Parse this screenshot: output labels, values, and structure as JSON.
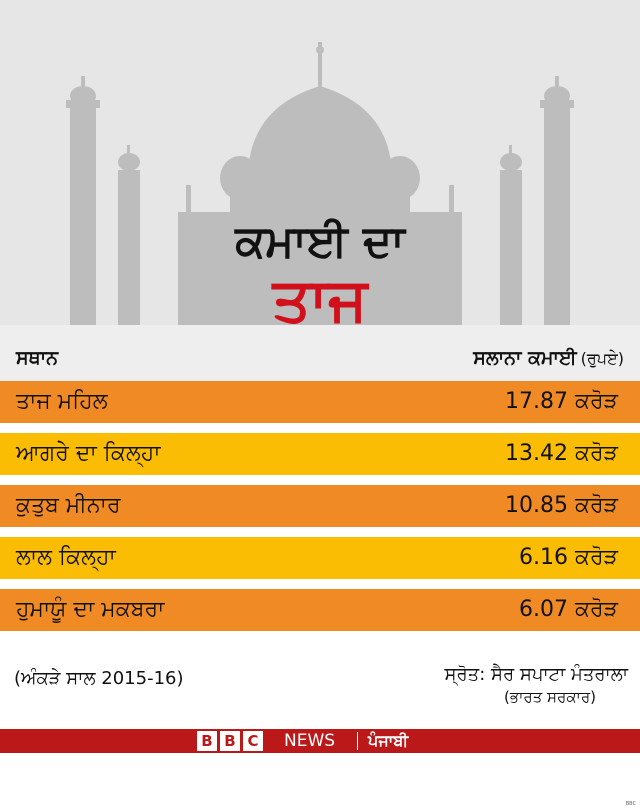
{
  "title": {
    "line1": "ਕਮਾਈ ਦਾ",
    "line2": "ਤਾਜ"
  },
  "header": {
    "place": "ਸਥਾਨ",
    "earnings": "ਸਲਾਨਾ ਕਮਾਈ",
    "unit": "(ਰੁਪਏ)"
  },
  "chart_data": {
    "type": "table",
    "title": "ਕਮਾਈ ਦਾ ਤਾਜ",
    "columns": [
      "ਸਥਾਨ",
      "ਸਲਾਨਾ ਕਮਾਈ (ਰੁਪਏ)"
    ],
    "rows": [
      {
        "place": "ਤਾਜ ਮਹਿਲ",
        "value": 17.87,
        "value_label": "17.87 ਕਰੋੜ"
      },
      {
        "place": "ਆਗਰੇ ਦਾ ਕਿਲ੍ਹਾ",
        "value": 13.42,
        "value_label": "13.42 ਕਰੋੜ"
      },
      {
        "place": "ਕੁਤੁਬ ਮੀਨਾਰ",
        "value": 10.85,
        "value_label": "10.85 ਕਰੋੜ"
      },
      {
        "place": "ਲਾਲ ਕਿਲ੍ਹਾ",
        "value": 6.16,
        "value_label": "6.16 ਕਰੋੜ"
      },
      {
        "place": "ਹੁਮਾਯੂੰ ਦਾ ਮਕਬਰਾ",
        "value": 6.07,
        "value_label": "6.07 ਕਰੋੜ"
      }
    ],
    "row_colors": [
      "#f08a24",
      "#fbbc04",
      "#f08a24",
      "#fbbc04",
      "#f08a24"
    ]
  },
  "footnote": "(ਅੰਕੜੇ ਸਾਲ 2015-16)",
  "source": {
    "line1": "ਸ੍ਰੋਤ: ਸੈਰ ਸਪਾਟਾ ਮੰਤਰਾਲਾ",
    "line2": "(ਭਾਰਤ ਸਰਕਾਰ)"
  },
  "brand": {
    "letters": [
      "B",
      "B",
      "C"
    ],
    "news": "NEWS",
    "language": "ਪੰਜਾਬੀ",
    "corner": "BBC"
  },
  "colors": {
    "hero_bg": "#e6e6e6",
    "monument": "#bdbdbd",
    "title_red": "#d0111b",
    "brand_red": "#bb1919"
  }
}
